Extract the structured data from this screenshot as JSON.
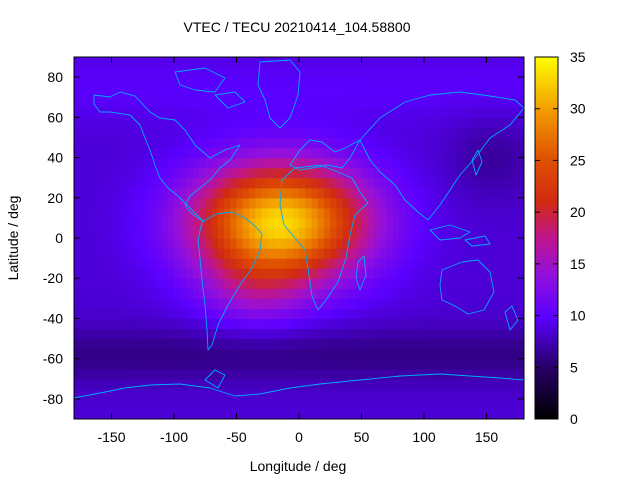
{
  "chart_data": {
    "type": "heatmap",
    "title": "VTEC / TECU 20210414_104.58800",
    "xlabel": "Longitude / deg",
    "ylabel": "Latitude / deg",
    "xlim": [
      -180,
      180
    ],
    "ylim": [
      -90,
      90
    ],
    "x_ticks": [
      -150,
      -100,
      -50,
      0,
      50,
      100,
      150
    ],
    "y_ticks": [
      -80,
      -60,
      -40,
      -20,
      0,
      20,
      40,
      60,
      80
    ],
    "colorbar": {
      "range": [
        0,
        35
      ],
      "ticks": [
        0,
        5,
        10,
        15,
        20,
        25,
        30,
        35
      ]
    },
    "grid_resolution_deg": 5,
    "field": {
      "background_tecu": 8.5,
      "peak_tecu": 33,
      "peak_center_lon": -15,
      "peak_center_lat": 8,
      "low_regions_tecu": [
        {
          "name": "south-polar-trough",
          "lat": -58,
          "tecu": 6
        },
        {
          "name": "north-pacific-low",
          "lon": 155,
          "lat": 40,
          "tecu": 7
        }
      ]
    },
    "overlay": "coastlines",
    "coastline_color": "#00aaff"
  }
}
